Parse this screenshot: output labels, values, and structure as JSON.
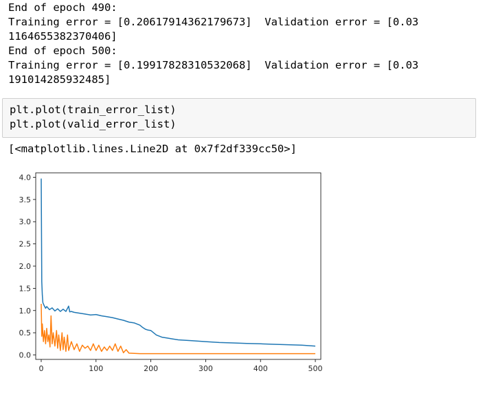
{
  "output": {
    "lines": [
      "End of epoch 490:",
      "Training error = [0.20617914362179673]  Validation error = [0.03",
      "1164655382370406]",
      "End of epoch 500:",
      "Training error = [0.19917828310532068]  Validation error = [0.03",
      "191014285932485]"
    ]
  },
  "code_cell": {
    "lines": [
      "plt.plot(train_error_list)",
      "plt.plot(valid_error_list)"
    ]
  },
  "result_repr": "[<matplotlib.lines.Line2D at 0x7f2df339cc50>]",
  "chart_data": {
    "type": "line",
    "xlim": [
      -10,
      510
    ],
    "ylim": [
      -0.1,
      4.1
    ],
    "x_ticks": [
      0,
      100,
      200,
      300,
      400,
      500
    ],
    "x_tick_labels": [
      "0",
      "100",
      "200",
      "300",
      "400",
      "500"
    ],
    "y_ticks": [
      0.0,
      0.5,
      1.0,
      1.5,
      2.0,
      2.5,
      3.0,
      3.5,
      4.0
    ],
    "y_tick_labels": [
      "0.0",
      "0.5",
      "1.0",
      "1.5",
      "2.0",
      "2.5",
      "3.0",
      "3.5",
      "4.0"
    ],
    "grid": false,
    "series": [
      {
        "color": "#1f77b4",
        "x": [
          0,
          1,
          2,
          3,
          5,
          8,
          10,
          15,
          20,
          25,
          30,
          35,
          40,
          45,
          50,
          52,
          55,
          60,
          70,
          80,
          90,
          100,
          110,
          120,
          130,
          140,
          150,
          160,
          170,
          180,
          185,
          190,
          195,
          200,
          210,
          220,
          230,
          240,
          250,
          275,
          300,
          325,
          350,
          375,
          400,
          425,
          450,
          475,
          500
        ],
        "y": [
          3.97,
          1.65,
          1.35,
          1.18,
          1.12,
          1.05,
          1.09,
          1.02,
          1.06,
          0.99,
          1.04,
          0.98,
          1.03,
          0.98,
          1.1,
          0.97,
          0.98,
          0.96,
          0.94,
          0.92,
          0.9,
          0.91,
          0.88,
          0.86,
          0.84,
          0.81,
          0.78,
          0.74,
          0.72,
          0.67,
          0.62,
          0.58,
          0.56,
          0.55,
          0.45,
          0.4,
          0.38,
          0.36,
          0.34,
          0.32,
          0.3,
          0.28,
          0.27,
          0.26,
          0.25,
          0.24,
          0.23,
          0.22,
          0.2
        ]
      },
      {
        "color": "#ff7f0e",
        "x": [
          0,
          1,
          2,
          4,
          6,
          8,
          10,
          12,
          14,
          16,
          18,
          20,
          22,
          25,
          28,
          30,
          32,
          35,
          38,
          40,
          42,
          45,
          48,
          50,
          55,
          60,
          65,
          70,
          75,
          80,
          85,
          90,
          95,
          100,
          105,
          110,
          115,
          120,
          125,
          130,
          135,
          140,
          145,
          150,
          155,
          160,
          180,
          200,
          300,
          400,
          500
        ],
        "y": [
          1.15,
          0.42,
          0.7,
          0.3,
          0.55,
          0.25,
          0.6,
          0.3,
          0.45,
          0.18,
          0.88,
          0.25,
          0.5,
          0.2,
          0.55,
          0.15,
          0.45,
          0.1,
          0.5,
          0.12,
          0.4,
          0.08,
          0.45,
          0.1,
          0.3,
          0.12,
          0.25,
          0.08,
          0.22,
          0.15,
          0.2,
          0.1,
          0.25,
          0.1,
          0.22,
          0.08,
          0.18,
          0.1,
          0.2,
          0.1,
          0.25,
          0.08,
          0.2,
          0.05,
          0.12,
          0.04,
          0.03,
          0.03,
          0.03,
          0.03,
          0.03
        ]
      }
    ]
  }
}
